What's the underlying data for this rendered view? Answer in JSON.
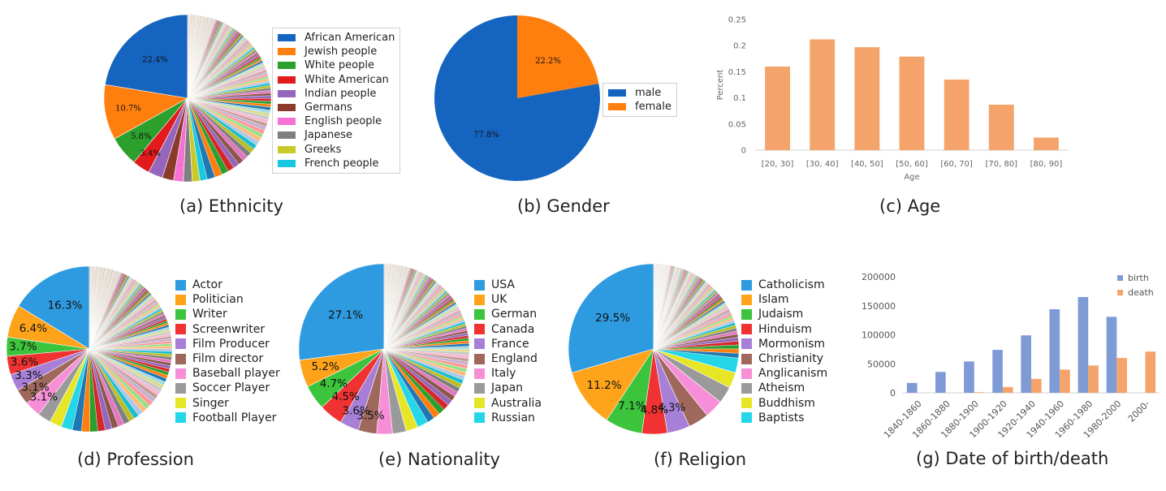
{
  "chart_data": [
    {
      "id": "a",
      "type": "pie",
      "caption": "(a) Ethnicity",
      "start_angle_deg": 0,
      "slices": [
        {
          "label": "African American",
          "value": 22.4,
          "color": "#1565C0",
          "pct_label": "22.4%"
        },
        {
          "label": "Jewish people",
          "value": 10.7,
          "color": "#FF7F0E",
          "pct_label": "10.7%"
        },
        {
          "label": "White people",
          "value": 5.8,
          "color": "#2CA02C",
          "pct_label": "5.8%"
        },
        {
          "label": "White American",
          "value": 3.4,
          "color": "#E31A1C",
          "pct_label": "3.4%"
        },
        {
          "label": "Indian people",
          "value": 2.8,
          "color": "#9467BD",
          "pct_label": ""
        },
        {
          "label": "Germans",
          "value": 2.2,
          "color": "#8C3B2A",
          "pct_label": ""
        },
        {
          "label": "English people",
          "value": 1.9,
          "color": "#F771D5",
          "pct_label": ""
        },
        {
          "label": "Japanese",
          "value": 1.7,
          "color": "#7F7F7F",
          "pct_label": ""
        },
        {
          "label": "Greeks",
          "value": 1.5,
          "color": "#C9C92A",
          "pct_label": ""
        },
        {
          "label": "French people",
          "value": 1.4,
          "color": "#17C9E0",
          "pct_label": ""
        }
      ],
      "legend_position": "right"
    },
    {
      "id": "b",
      "type": "pie",
      "caption": "(b) Gender",
      "start_angle_deg": 0,
      "slices": [
        {
          "label": "female",
          "value": 22.2,
          "color": "#FF7F0E",
          "pct_label": "22.2%"
        },
        {
          "label": "male",
          "value": 77.8,
          "color": "#1565C0",
          "pct_label": "77.8%"
        }
      ],
      "legend": [
        "male",
        "female"
      ],
      "legend_position": "right"
    },
    {
      "id": "c",
      "type": "bar",
      "caption": "(c) Age",
      "categories": [
        "[20, 30]",
        "[30, 40]",
        "[40, 50]",
        "[50, 60]",
        "[60, 70]",
        "[70, 80]",
        "[80, 90]"
      ],
      "values": [
        0.16,
        0.212,
        0.197,
        0.179,
        0.135,
        0.087,
        0.024
      ],
      "xlabel": "Age",
      "ylabel": "Percent",
      "ylim": [
        0,
        0.25
      ],
      "yticks": [
        "0",
        "0.05",
        "0.1",
        "0.15",
        "0.2",
        "0.25"
      ],
      "color": "#F4A46A",
      "grid": false
    },
    {
      "id": "d",
      "type": "pie",
      "caption": "(d) Profession",
      "start_angle_deg": 0,
      "slices": [
        {
          "label": "Actor",
          "value": 16.3,
          "color": "#2E9BE0",
          "pct_label": "16.3%"
        },
        {
          "label": "Politician",
          "value": 6.4,
          "color": "#FFA31A",
          "pct_label": "6.4%"
        },
        {
          "label": "Writer",
          "value": 3.7,
          "color": "#3CC43C",
          "pct_label": "3.7%"
        },
        {
          "label": "Screenwriter",
          "value": 3.6,
          "color": "#F03232",
          "pct_label": "3.6%"
        },
        {
          "label": "Film Producer",
          "value": 3.3,
          "color": "#A77FD6",
          "pct_label": "3.3%"
        },
        {
          "label": "Film director",
          "value": 3.1,
          "color": "#A0685C",
          "pct_label": "3.1%"
        },
        {
          "label": "Baseball player",
          "value": 3.1,
          "color": "#F78FD8",
          "pct_label": "3.1%"
        },
        {
          "label": "Soccer Player",
          "value": 2.6,
          "color": "#9A9A9A",
          "pct_label": ""
        },
        {
          "label": "Singer",
          "value": 2.4,
          "color": "#E6E627",
          "pct_label": ""
        },
        {
          "label": "Football Player",
          "value": 2.2,
          "color": "#24D6E8",
          "pct_label": ""
        }
      ],
      "legend_position": "right"
    },
    {
      "id": "e",
      "type": "pie",
      "caption": "(e) Nationality",
      "start_angle_deg": 0,
      "slices": [
        {
          "label": "USA",
          "value": 27.1,
          "color": "#2E9BE0",
          "pct_label": "27.1%"
        },
        {
          "label": "UK",
          "value": 5.2,
          "color": "#FFA31A",
          "pct_label": "5.2%"
        },
        {
          "label": "German",
          "value": 4.7,
          "color": "#3CC43C",
          "pct_label": "4.7%"
        },
        {
          "label": "Canada",
          "value": 4.5,
          "color": "#F03232",
          "pct_label": "4.5%"
        },
        {
          "label": "France",
          "value": 3.6,
          "color": "#A77FD6",
          "pct_label": "3.6%"
        },
        {
          "label": "England",
          "value": 3.5,
          "color": "#A0685C",
          "pct_label": "3.5%"
        },
        {
          "label": "Italy",
          "value": 3.0,
          "color": "#F78FD8",
          "pct_label": ""
        },
        {
          "label": "Japan",
          "value": 2.6,
          "color": "#9A9A9A",
          "pct_label": ""
        },
        {
          "label": "Australia",
          "value": 2.3,
          "color": "#E6E627",
          "pct_label": ""
        },
        {
          "label": "Russian",
          "value": 2.1,
          "color": "#24D6E8",
          "pct_label": ""
        }
      ],
      "legend_position": "right"
    },
    {
      "id": "f",
      "type": "pie",
      "caption": "(f) Religion",
      "start_angle_deg": 0,
      "slices": [
        {
          "label": "Catholicism",
          "value": 29.5,
          "color": "#2E9BE0",
          "pct_label": "29.5%"
        },
        {
          "label": "Islam",
          "value": 11.2,
          "color": "#FFA31A",
          "pct_label": "11.2%"
        },
        {
          "label": "Judaism",
          "value": 7.1,
          "color": "#3CC43C",
          "pct_label": "7.1%"
        },
        {
          "label": "Hinduism",
          "value": 4.8,
          "color": "#F03232",
          "pct_label": "4.8%"
        },
        {
          "label": "Mormonism",
          "value": 4.3,
          "color": "#A77FD6",
          "pct_label": "4.3%"
        },
        {
          "label": "Christianity",
          "value": 3.9,
          "color": "#A0685C",
          "pct_label": ""
        },
        {
          "label": "Anglicanism",
          "value": 3.5,
          "color": "#F78FD8",
          "pct_label": ""
        },
        {
          "label": "Atheism",
          "value": 3.2,
          "color": "#9A9A9A",
          "pct_label": ""
        },
        {
          "label": "Buddhism",
          "value": 3.0,
          "color": "#E6E627",
          "pct_label": ""
        },
        {
          "label": "Baptists",
          "value": 2.8,
          "color": "#24D6E8",
          "pct_label": ""
        }
      ],
      "legend_position": "right"
    },
    {
      "id": "g",
      "type": "bar",
      "caption": "(g) Date of birth/death",
      "categories": [
        "1840-1860",
        "1860-1880",
        "1880-1900",
        "1900-1920",
        "1920-1940",
        "1940-1960",
        "1960-1980",
        "1980-2000",
        "2000-"
      ],
      "series": [
        {
          "name": "birth",
          "values": [
            17000,
            36000,
            54000,
            74000,
            99000,
            144000,
            165000,
            131000,
            0
          ],
          "color": "#7E9BD6"
        },
        {
          "name": "death",
          "values": [
            0,
            0,
            1000,
            10000,
            24000,
            40000,
            47000,
            60000,
            71000
          ],
          "color": "#F4A46A"
        }
      ],
      "ylim": [
        0,
        200000
      ],
      "yticks": [
        "0",
        "50000",
        "100000",
        "150000",
        "200000"
      ],
      "legend_position": "top-right",
      "grid": false
    }
  ],
  "tail": {
    "palette_full": [
      "#1F77B4",
      "#FF7F0E",
      "#2CA02C",
      "#D62728",
      "#9467BD",
      "#8C564B",
      "#E377C2",
      "#7F7F7F",
      "#BCBD22",
      "#17BECF",
      "#AEC7E8",
      "#FFBB78",
      "#98DF8A",
      "#FF9896",
      "#C5B0D5",
      "#C49C94",
      "#F7B6D2",
      "#C7C7C7",
      "#DBDB8D",
      "#9EDAE5"
    ],
    "palette_fade": [
      "#d6ccc0",
      "#e2d9cd",
      "#c9bdad",
      "#ded2c4",
      "#cfc3b3",
      "#e8dfd4",
      "#d9cfc1",
      "#c4b8a8"
    ]
  }
}
